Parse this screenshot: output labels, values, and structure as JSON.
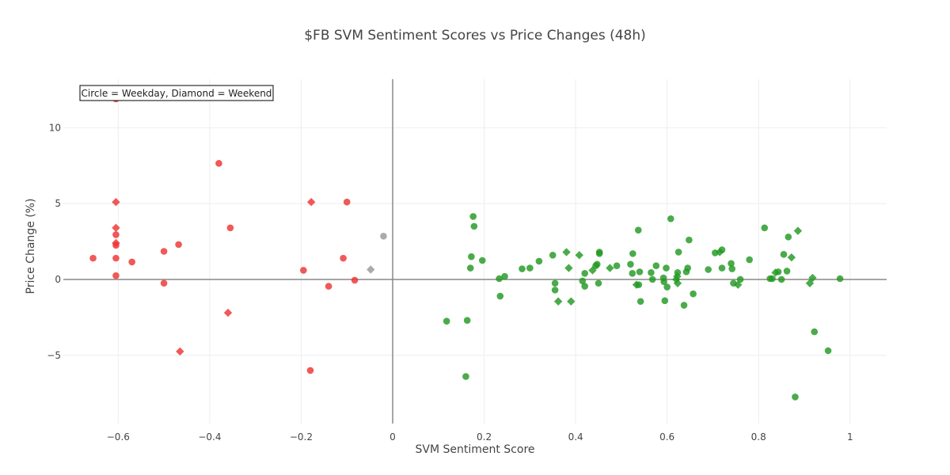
{
  "chart_data": {
    "type": "scatter",
    "title": "$FB SVM Sentiment Scores vs Price Changes (48h)",
    "xlabel": "SVM Sentiment Score",
    "ylabel": "Price Change (%)",
    "xlim": [
      -0.72,
      1.08
    ],
    "ylim": [
      -9.5,
      13.2
    ],
    "x_ticks": [
      -0.6,
      -0.4,
      -0.2,
      0,
      0.2,
      0.4,
      0.6,
      0.8,
      1
    ],
    "x_tick_labels": [
      "−0.6",
      "−0.4",
      "−0.2",
      "0",
      "0.2",
      "0.4",
      "0.6",
      "0.8",
      "1"
    ],
    "y_ticks": [
      -5,
      0,
      5,
      10
    ],
    "y_tick_labels": [
      "−5",
      "0",
      "5",
      "10"
    ],
    "grid": true,
    "legend": "none",
    "annotation": "Circle = Weekday, Diamond = Weekend",
    "colors": {
      "negative": "#ee3333",
      "neutral": "#999999",
      "positive": "#229922"
    },
    "points": [
      {
        "x": -0.655,
        "y": 1.4,
        "sentiment": "negative",
        "day": "weekday"
      },
      {
        "x": -0.605,
        "y": 11.9,
        "sentiment": "negative",
        "day": "weekday"
      },
      {
        "x": -0.605,
        "y": 5.1,
        "sentiment": "negative",
        "day": "weekend"
      },
      {
        "x": -0.605,
        "y": 3.4,
        "sentiment": "negative",
        "day": "weekend"
      },
      {
        "x": -0.605,
        "y": 2.95,
        "sentiment": "negative",
        "day": "weekday"
      },
      {
        "x": -0.605,
        "y": 2.4,
        "sentiment": "negative",
        "day": "weekend"
      },
      {
        "x": -0.605,
        "y": 2.25,
        "sentiment": "negative",
        "day": "weekday"
      },
      {
        "x": -0.605,
        "y": 1.4,
        "sentiment": "negative",
        "day": "weekday"
      },
      {
        "x": -0.605,
        "y": 0.25,
        "sentiment": "negative",
        "day": "weekday"
      },
      {
        "x": -0.57,
        "y": 1.15,
        "sentiment": "negative",
        "day": "weekday"
      },
      {
        "x": -0.5,
        "y": 1.85,
        "sentiment": "negative",
        "day": "weekday"
      },
      {
        "x": -0.5,
        "y": -0.25,
        "sentiment": "negative",
        "day": "weekday"
      },
      {
        "x": -0.468,
        "y": 2.3,
        "sentiment": "negative",
        "day": "weekday"
      },
      {
        "x": -0.465,
        "y": -4.75,
        "sentiment": "negative",
        "day": "weekend"
      },
      {
        "x": -0.38,
        "y": 7.65,
        "sentiment": "negative",
        "day": "weekday"
      },
      {
        "x": -0.36,
        "y": -2.2,
        "sentiment": "negative",
        "day": "weekend"
      },
      {
        "x": -0.355,
        "y": 3.4,
        "sentiment": "negative",
        "day": "weekday"
      },
      {
        "x": -0.195,
        "y": 0.6,
        "sentiment": "negative",
        "day": "weekday"
      },
      {
        "x": -0.18,
        "y": -6.0,
        "sentiment": "negative",
        "day": "weekday"
      },
      {
        "x": -0.178,
        "y": 5.1,
        "sentiment": "negative",
        "day": "weekend"
      },
      {
        "x": -0.14,
        "y": -0.45,
        "sentiment": "negative",
        "day": "weekday"
      },
      {
        "x": -0.108,
        "y": 1.4,
        "sentiment": "negative",
        "day": "weekday"
      },
      {
        "x": -0.1,
        "y": 5.1,
        "sentiment": "negative",
        "day": "weekday"
      },
      {
        "x": -0.083,
        "y": -0.05,
        "sentiment": "negative",
        "day": "weekday"
      },
      {
        "x": -0.048,
        "y": 0.65,
        "sentiment": "neutral",
        "day": "weekend"
      },
      {
        "x": -0.02,
        "y": 2.85,
        "sentiment": "neutral",
        "day": "weekday"
      },
      {
        "x": 0.118,
        "y": -2.75,
        "sentiment": "positive",
        "day": "weekday"
      },
      {
        "x": 0.16,
        "y": -6.4,
        "sentiment": "positive",
        "day": "weekday"
      },
      {
        "x": 0.163,
        "y": -2.7,
        "sentiment": "positive",
        "day": "weekday"
      },
      {
        "x": 0.17,
        "y": 0.75,
        "sentiment": "positive",
        "day": "weekday"
      },
      {
        "x": 0.172,
        "y": 1.5,
        "sentiment": "positive",
        "day": "weekday"
      },
      {
        "x": 0.176,
        "y": 4.15,
        "sentiment": "positive",
        "day": "weekday"
      },
      {
        "x": 0.178,
        "y": 3.5,
        "sentiment": "positive",
        "day": "weekday"
      },
      {
        "x": 0.196,
        "y": 1.25,
        "sentiment": "positive",
        "day": "weekday"
      },
      {
        "x": 0.233,
        "y": 0.05,
        "sentiment": "positive",
        "day": "weekday"
      },
      {
        "x": 0.235,
        "y": -1.1,
        "sentiment": "positive",
        "day": "weekday"
      },
      {
        "x": 0.245,
        "y": 0.2,
        "sentiment": "positive",
        "day": "weekday"
      },
      {
        "x": 0.283,
        "y": 0.7,
        "sentiment": "positive",
        "day": "weekday"
      },
      {
        "x": 0.3,
        "y": 0.75,
        "sentiment": "positive",
        "day": "weekday"
      },
      {
        "x": 0.32,
        "y": 1.2,
        "sentiment": "positive",
        "day": "weekday"
      },
      {
        "x": 0.35,
        "y": 1.6,
        "sentiment": "positive",
        "day": "weekday"
      },
      {
        "x": 0.355,
        "y": -0.25,
        "sentiment": "positive",
        "day": "weekday"
      },
      {
        "x": 0.355,
        "y": -0.7,
        "sentiment": "positive",
        "day": "weekday"
      },
      {
        "x": 0.362,
        "y": -1.45,
        "sentiment": "positive",
        "day": "weekend"
      },
      {
        "x": 0.38,
        "y": 1.8,
        "sentiment": "positive",
        "day": "weekend"
      },
      {
        "x": 0.385,
        "y": 0.75,
        "sentiment": "positive",
        "day": "weekend"
      },
      {
        "x": 0.39,
        "y": -1.45,
        "sentiment": "positive",
        "day": "weekend"
      },
      {
        "x": 0.408,
        "y": 1.6,
        "sentiment": "positive",
        "day": "weekend"
      },
      {
        "x": 0.415,
        "y": -0.1,
        "sentiment": "positive",
        "day": "weekday"
      },
      {
        "x": 0.42,
        "y": 0.4,
        "sentiment": "positive",
        "day": "weekday"
      },
      {
        "x": 0.42,
        "y": -0.45,
        "sentiment": "positive",
        "day": "weekday"
      },
      {
        "x": 0.437,
        "y": 0.6,
        "sentiment": "positive",
        "day": "weekend"
      },
      {
        "x": 0.444,
        "y": 0.9,
        "sentiment": "positive",
        "day": "weekday"
      },
      {
        "x": 0.447,
        "y": 1.0,
        "sentiment": "positive",
        "day": "weekday"
      },
      {
        "x": 0.45,
        "y": -0.25,
        "sentiment": "positive",
        "day": "weekday"
      },
      {
        "x": 0.452,
        "y": 1.7,
        "sentiment": "positive",
        "day": "weekday"
      },
      {
        "x": 0.452,
        "y": 1.8,
        "sentiment": "positive",
        "day": "weekday"
      },
      {
        "x": 0.475,
        "y": 0.75,
        "sentiment": "positive",
        "day": "weekend"
      },
      {
        "x": 0.49,
        "y": 0.9,
        "sentiment": "positive",
        "day": "weekday"
      },
      {
        "x": 0.52,
        "y": 1.0,
        "sentiment": "positive",
        "day": "weekday"
      },
      {
        "x": 0.524,
        "y": 0.4,
        "sentiment": "positive",
        "day": "weekday"
      },
      {
        "x": 0.525,
        "y": 1.7,
        "sentiment": "positive",
        "day": "weekday"
      },
      {
        "x": 0.533,
        "y": -0.35,
        "sentiment": "positive",
        "day": "weekend"
      },
      {
        "x": 0.537,
        "y": 3.25,
        "sentiment": "positive",
        "day": "weekday"
      },
      {
        "x": 0.538,
        "y": -0.35,
        "sentiment": "positive",
        "day": "weekday"
      },
      {
        "x": 0.54,
        "y": 0.5,
        "sentiment": "positive",
        "day": "weekday"
      },
      {
        "x": 0.542,
        "y": -1.45,
        "sentiment": "positive",
        "day": "weekday"
      },
      {
        "x": 0.565,
        "y": 0.45,
        "sentiment": "positive",
        "day": "weekday"
      },
      {
        "x": 0.568,
        "y": 0.0,
        "sentiment": "positive",
        "day": "weekday"
      },
      {
        "x": 0.576,
        "y": 0.9,
        "sentiment": "positive",
        "day": "weekday"
      },
      {
        "x": 0.592,
        "y": 0.1,
        "sentiment": "positive",
        "day": "weekday"
      },
      {
        "x": 0.593,
        "y": -0.15,
        "sentiment": "positive",
        "day": "weekday"
      },
      {
        "x": 0.595,
        "y": -1.4,
        "sentiment": "positive",
        "day": "weekday"
      },
      {
        "x": 0.598,
        "y": 0.75,
        "sentiment": "positive",
        "day": "weekday"
      },
      {
        "x": 0.6,
        "y": -0.5,
        "sentiment": "positive",
        "day": "weekday"
      },
      {
        "x": 0.608,
        "y": 4.0,
        "sentiment": "positive",
        "day": "weekday"
      },
      {
        "x": 0.62,
        "y": 0.0,
        "sentiment": "positive",
        "day": "weekend"
      },
      {
        "x": 0.622,
        "y": 0.2,
        "sentiment": "positive",
        "day": "weekend"
      },
      {
        "x": 0.623,
        "y": -0.25,
        "sentiment": "positive",
        "day": "weekend"
      },
      {
        "x": 0.623,
        "y": 0.45,
        "sentiment": "positive",
        "day": "weekday"
      },
      {
        "x": 0.625,
        "y": 1.8,
        "sentiment": "positive",
        "day": "weekday"
      },
      {
        "x": 0.637,
        "y": -1.7,
        "sentiment": "positive",
        "day": "weekday"
      },
      {
        "x": 0.642,
        "y": 0.5,
        "sentiment": "positive",
        "day": "weekday"
      },
      {
        "x": 0.645,
        "y": 0.75,
        "sentiment": "positive",
        "day": "weekday"
      },
      {
        "x": 0.648,
        "y": 2.6,
        "sentiment": "positive",
        "day": "weekday"
      },
      {
        "x": 0.657,
        "y": -0.95,
        "sentiment": "positive",
        "day": "weekday"
      },
      {
        "x": 0.69,
        "y": 0.65,
        "sentiment": "positive",
        "day": "weekday"
      },
      {
        "x": 0.705,
        "y": 1.75,
        "sentiment": "positive",
        "day": "weekday"
      },
      {
        "x": 0.715,
        "y": 1.8,
        "sentiment": "positive",
        "day": "weekend"
      },
      {
        "x": 0.72,
        "y": 1.95,
        "sentiment": "positive",
        "day": "weekday"
      },
      {
        "x": 0.72,
        "y": 0.75,
        "sentiment": "positive",
        "day": "weekday"
      },
      {
        "x": 0.74,
        "y": 1.05,
        "sentiment": "positive",
        "day": "weekday"
      },
      {
        "x": 0.742,
        "y": 0.7,
        "sentiment": "positive",
        "day": "weekday"
      },
      {
        "x": 0.745,
        "y": -0.25,
        "sentiment": "positive",
        "day": "weekday"
      },
      {
        "x": 0.755,
        "y": -0.35,
        "sentiment": "positive",
        "day": "weekend"
      },
      {
        "x": 0.76,
        "y": 0.0,
        "sentiment": "positive",
        "day": "weekday"
      },
      {
        "x": 0.78,
        "y": 1.3,
        "sentiment": "positive",
        "day": "weekday"
      },
      {
        "x": 0.813,
        "y": 3.4,
        "sentiment": "positive",
        "day": "weekday"
      },
      {
        "x": 0.825,
        "y": 0.05,
        "sentiment": "positive",
        "day": "weekday"
      },
      {
        "x": 0.83,
        "y": 0.05,
        "sentiment": "positive",
        "day": "weekday"
      },
      {
        "x": 0.837,
        "y": 0.45,
        "sentiment": "positive",
        "day": "weekend"
      },
      {
        "x": 0.843,
        "y": 0.5,
        "sentiment": "positive",
        "day": "weekday"
      },
      {
        "x": 0.85,
        "y": 0.0,
        "sentiment": "positive",
        "day": "weekday"
      },
      {
        "x": 0.855,
        "y": 1.65,
        "sentiment": "positive",
        "day": "weekday"
      },
      {
        "x": 0.862,
        "y": 0.55,
        "sentiment": "positive",
        "day": "weekday"
      },
      {
        "x": 0.865,
        "y": 2.8,
        "sentiment": "positive",
        "day": "weekday"
      },
      {
        "x": 0.872,
        "y": 1.45,
        "sentiment": "positive",
        "day": "weekend"
      },
      {
        "x": 0.88,
        "y": -7.75,
        "sentiment": "positive",
        "day": "weekday"
      },
      {
        "x": 0.886,
        "y": 3.2,
        "sentiment": "positive",
        "day": "weekend"
      },
      {
        "x": 0.912,
        "y": -0.25,
        "sentiment": "positive",
        "day": "weekend"
      },
      {
        "x": 0.918,
        "y": 0.1,
        "sentiment": "positive",
        "day": "weekend"
      },
      {
        "x": 0.922,
        "y": -3.45,
        "sentiment": "positive",
        "day": "weekday"
      },
      {
        "x": 0.952,
        "y": -4.7,
        "sentiment": "positive",
        "day": "weekday"
      },
      {
        "x": 0.978,
        "y": 0.05,
        "sentiment": "positive",
        "day": "weekday"
      }
    ]
  }
}
